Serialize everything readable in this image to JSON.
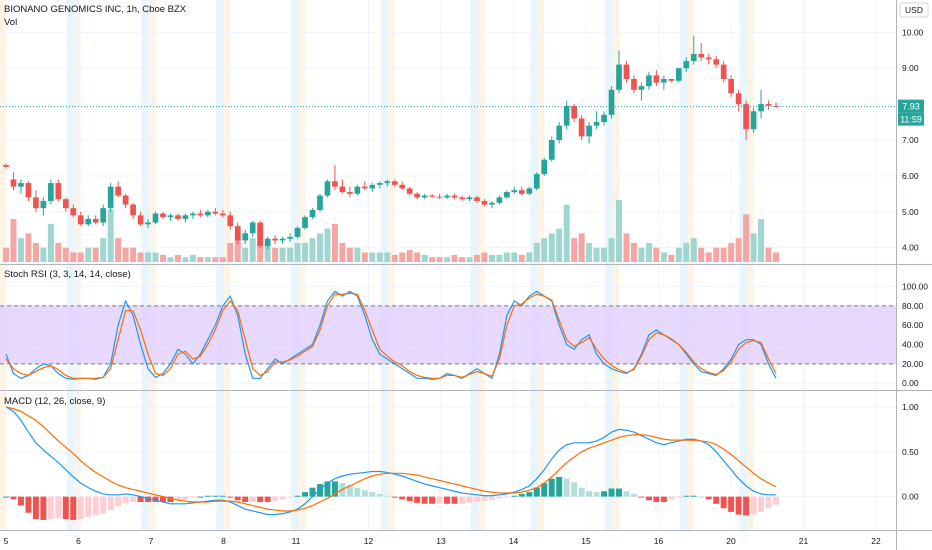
{
  "header": {
    "title": "BIONANO GENOMICS INC, 1h, Cboe BZX",
    "vol_label": "Vol",
    "currency": "USD"
  },
  "price_axis": {
    "ticks": [
      "10.00",
      "9.00",
      "8.00",
      "7.00",
      "6.00",
      "5.00",
      "4.00"
    ]
  },
  "price_tags": {
    "last": "7.93",
    "countdown": "11:59"
  },
  "stoch": {
    "title": "Stoch RSI (3, 3, 14, 14, close)",
    "ticks": [
      "100.00",
      "80.00",
      "60.00",
      "40.00",
      "20.00",
      "0.00"
    ]
  },
  "macd": {
    "title": "MACD (12, 26, close, 9)",
    "ticks": [
      "1.00",
      "0.50",
      "0.00"
    ]
  },
  "time_axis": {
    "ticks": [
      "5",
      "6",
      "7",
      "8",
      "11",
      "12",
      "13",
      "14",
      "15",
      "16",
      "20",
      "21",
      "22"
    ]
  },
  "colors": {
    "up": "#26a69a",
    "down": "#ef5350",
    "vol_up": "#9fd6cf",
    "vol_down": "#f5a5a3",
    "stoch_k": "#2196f3",
    "stoch_d": "#ff6d00",
    "macd_line": "#2196f3",
    "signal_line": "#ff6d00",
    "band": "#e1d0ff",
    "session_blue": "#e3f2fd",
    "session_orange": "#fff3e0",
    "last_price": "#26a69a"
  },
  "chart_data": [
    {
      "type": "candlestick",
      "title": "BIONANO GENOMICS INC, 1h, Cboe BZX",
      "ylim": [
        3.6,
        10.4
      ],
      "x_ticks": [
        "5",
        "6",
        "7",
        "8",
        "11",
        "12",
        "13",
        "14",
        "15",
        "16",
        "20",
        "21",
        "22"
      ],
      "y_ticks": [
        4,
        5,
        6,
        7,
        8,
        9,
        10
      ],
      "last_price": 7.93,
      "ohlc_hourly": [
        [
          6.3,
          6.35,
          6.2,
          6.25
        ],
        [
          5.9,
          6.1,
          5.6,
          5.7
        ],
        [
          5.7,
          5.9,
          5.5,
          5.8
        ],
        [
          5.8,
          5.85,
          5.3,
          5.4
        ],
        [
          5.4,
          5.6,
          5.0,
          5.1
        ],
        [
          5.1,
          5.4,
          4.9,
          5.3
        ],
        [
          5.3,
          5.9,
          5.2,
          5.8
        ],
        [
          5.8,
          5.9,
          5.3,
          5.35
        ],
        [
          5.35,
          5.4,
          5.0,
          5.1
        ],
        [
          5.1,
          5.2,
          4.85,
          4.9
        ],
        [
          4.9,
          5.0,
          4.6,
          4.65
        ],
        [
          4.65,
          4.9,
          4.6,
          4.8
        ],
        [
          4.8,
          4.9,
          4.65,
          4.7
        ],
        [
          4.7,
          5.2,
          4.6,
          5.1
        ],
        [
          5.1,
          5.8,
          5.0,
          5.7
        ],
        [
          5.7,
          5.85,
          5.4,
          5.45
        ],
        [
          5.45,
          5.5,
          5.1,
          5.2
        ],
        [
          5.2,
          5.25,
          4.8,
          4.9
        ],
        [
          4.9,
          5.0,
          4.6,
          4.65
        ],
        [
          4.65,
          4.8,
          4.55,
          4.7
        ],
        [
          4.7,
          5.0,
          4.65,
          4.95
        ],
        [
          4.95,
          5.0,
          4.8,
          4.85
        ],
        [
          4.85,
          4.95,
          4.75,
          4.9
        ],
        [
          4.9,
          4.95,
          4.75,
          4.8
        ],
        [
          4.8,
          4.95,
          4.7,
          4.9
        ],
        [
          4.9,
          5.0,
          4.8,
          4.95
        ],
        [
          4.95,
          5.05,
          4.85,
          4.9
        ],
        [
          4.9,
          5.05,
          4.85,
          5.0
        ],
        [
          5.0,
          5.1,
          4.9,
          4.95
        ],
        [
          4.95,
          5.05,
          4.85,
          4.9
        ],
        [
          4.9,
          5.0,
          4.5,
          4.6
        ],
        [
          4.6,
          4.7,
          4.1,
          4.2
        ],
        [
          4.2,
          4.5,
          4.1,
          4.4
        ],
        [
          4.4,
          4.75,
          4.3,
          4.7
        ],
        [
          4.7,
          4.75,
          4.0,
          4.05
        ],
        [
          4.05,
          4.3,
          3.95,
          4.25
        ],
        [
          4.25,
          4.35,
          4.1,
          4.2
        ],
        [
          4.2,
          4.3,
          4.1,
          4.25
        ],
        [
          4.25,
          4.4,
          4.15,
          4.3
        ],
        [
          4.3,
          4.6,
          4.25,
          4.55
        ],
        [
          4.55,
          4.9,
          4.5,
          4.85
        ],
        [
          4.85,
          5.1,
          4.8,
          5.05
        ],
        [
          5.05,
          5.5,
          5.0,
          5.45
        ],
        [
          5.45,
          5.9,
          5.4,
          5.85
        ],
        [
          5.85,
          6.3,
          5.6,
          5.7
        ],
        [
          5.7,
          5.9,
          5.5,
          5.55
        ],
        [
          5.55,
          5.7,
          5.4,
          5.5
        ],
        [
          5.5,
          5.75,
          5.45,
          5.7
        ],
        [
          5.7,
          5.85,
          5.6,
          5.65
        ],
        [
          5.65,
          5.8,
          5.55,
          5.75
        ],
        [
          5.75,
          5.85,
          5.65,
          5.8
        ],
        [
          5.8,
          5.9,
          5.7,
          5.85
        ],
        [
          5.85,
          5.9,
          5.7,
          5.75
        ],
        [
          5.75,
          5.85,
          5.6,
          5.65
        ],
        [
          5.65,
          5.7,
          5.45,
          5.5
        ],
        [
          5.5,
          5.55,
          5.35,
          5.4
        ],
        [
          5.4,
          5.5,
          5.35,
          5.45
        ],
        [
          5.45,
          5.5,
          5.4,
          5.42
        ],
        [
          5.42,
          5.5,
          5.35,
          5.4
        ],
        [
          5.4,
          5.5,
          5.35,
          5.45
        ],
        [
          5.45,
          5.5,
          5.35,
          5.4
        ],
        [
          5.4,
          5.45,
          5.3,
          5.35
        ],
        [
          5.35,
          5.45,
          5.3,
          5.4
        ],
        [
          5.4,
          5.45,
          5.25,
          5.3
        ],
        [
          5.3,
          5.35,
          5.15,
          5.2
        ],
        [
          5.2,
          5.3,
          5.1,
          5.25
        ],
        [
          5.25,
          5.45,
          5.2,
          5.4
        ],
        [
          5.4,
          5.6,
          5.35,
          5.55
        ],
        [
          5.55,
          5.7,
          5.5,
          5.6
        ],
        [
          5.6,
          5.7,
          5.45,
          5.5
        ],
        [
          5.5,
          5.7,
          5.45,
          5.65
        ],
        [
          5.65,
          6.1,
          5.6,
          6.05
        ],
        [
          6.05,
          6.5,
          6.0,
          6.45
        ],
        [
          6.45,
          7.1,
          6.4,
          7.0
        ],
        [
          7.0,
          7.5,
          6.9,
          7.4
        ],
        [
          7.4,
          8.1,
          7.3,
          7.95
        ],
        [
          7.95,
          8.0,
          7.5,
          7.6
        ],
        [
          7.6,
          7.7,
          7.0,
          7.1
        ],
        [
          7.1,
          7.5,
          6.9,
          7.4
        ],
        [
          7.4,
          7.8,
          7.3,
          7.5
        ],
        [
          7.5,
          7.8,
          7.4,
          7.7
        ],
        [
          7.7,
          8.5,
          7.6,
          8.4
        ],
        [
          8.4,
          9.5,
          8.3,
          9.1
        ],
        [
          9.1,
          9.2,
          8.6,
          8.7
        ],
        [
          8.7,
          8.8,
          8.3,
          8.4
        ],
        [
          8.4,
          8.6,
          8.1,
          8.5
        ],
        [
          8.5,
          8.9,
          8.4,
          8.8
        ],
        [
          8.8,
          8.95,
          8.5,
          8.6
        ],
        [
          8.6,
          8.8,
          8.4,
          8.7
        ],
        [
          8.7,
          8.7,
          8.6,
          8.65
        ],
        [
          8.65,
          9.0,
          8.6,
          9.0
        ],
        [
          9.0,
          9.3,
          8.9,
          9.2
        ],
        [
          9.2,
          9.9,
          9.1,
          9.4
        ],
        [
          9.4,
          9.7,
          9.2,
          9.3
        ],
        [
          9.3,
          9.4,
          9.1,
          9.25
        ],
        [
          9.25,
          9.35,
          9.0,
          9.1
        ],
        [
          9.1,
          9.2,
          8.6,
          8.7
        ],
        [
          8.7,
          8.8,
          8.2,
          8.3
        ],
        [
          8.3,
          8.4,
          7.8,
          8.0
        ],
        [
          8.0,
          8.1,
          7.0,
          7.3
        ],
        [
          7.3,
          7.9,
          7.2,
          7.8
        ],
        [
          7.8,
          8.4,
          7.6,
          8.0
        ],
        [
          8.0,
          8.1,
          7.85,
          7.95
        ],
        [
          7.95,
          8.05,
          7.9,
          7.93
        ]
      ]
    },
    {
      "type": "bar",
      "title": "Vol",
      "values": [
        0.3,
        0.9,
        0.5,
        0.6,
        0.4,
        0.3,
        0.8,
        0.4,
        0.3,
        0.2,
        0.2,
        0.3,
        0.3,
        0.5,
        1.1,
        0.5,
        0.3,
        0.3,
        0.2,
        0.2,
        0.2,
        0.15,
        0.1,
        0.15,
        0.1,
        0.15,
        0.1,
        0.1,
        0.1,
        0.1,
        0.4,
        0.6,
        0.3,
        0.5,
        0.7,
        0.4,
        0.3,
        0.3,
        0.3,
        0.4,
        0.4,
        0.5,
        0.6,
        0.7,
        0.8,
        0.4,
        0.3,
        0.3,
        0.2,
        0.2,
        0.2,
        0.2,
        0.15,
        0.2,
        0.25,
        0.2,
        0.15,
        0.1,
        0.1,
        0.1,
        0.15,
        0.1,
        0.1,
        0.15,
        0.2,
        0.15,
        0.15,
        0.2,
        0.2,
        0.15,
        0.2,
        0.4,
        0.5,
        0.6,
        0.7,
        1.2,
        0.5,
        0.6,
        0.4,
        0.3,
        0.3,
        0.5,
        1.3,
        0.6,
        0.4,
        0.3,
        0.4,
        0.3,
        0.2,
        0.15,
        0.3,
        0.4,
        0.5,
        0.3,
        0.2,
        0.3,
        0.3,
        0.4,
        0.5,
        1.0,
        0.6,
        0.9,
        0.3,
        0.2
      ]
    },
    {
      "type": "line",
      "title": "Stoch RSI (3, 3, 14, 14, close)",
      "ylim": [
        -5,
        115
      ],
      "y_ticks": [
        0,
        20,
        40,
        60,
        80,
        100
      ],
      "band": [
        20,
        80
      ],
      "series": [
        {
          "name": "K",
          "values": [
            30,
            10,
            5,
            8,
            15,
            20,
            18,
            10,
            5,
            4,
            5,
            5,
            4,
            6,
            20,
            60,
            85,
            70,
            40,
            15,
            6,
            10,
            20,
            35,
            30,
            20,
            30,
            45,
            60,
            80,
            90,
            70,
            30,
            5,
            5,
            15,
            25,
            20,
            25,
            30,
            35,
            40,
            60,
            85,
            95,
            90,
            95,
            90,
            70,
            45,
            30,
            25,
            20,
            15,
            10,
            5,
            5,
            4,
            5,
            10,
            8,
            5,
            10,
            15,
            10,
            5,
            30,
            70,
            85,
            80,
            90,
            95,
            90,
            85,
            60,
            40,
            35,
            45,
            50,
            30,
            20,
            15,
            12,
            10,
            15,
            30,
            50,
            55,
            50,
            45,
            40,
            30,
            20,
            12,
            10,
            8,
            15,
            25,
            40,
            45,
            45,
            40,
            20,
            5
          ]
        },
        {
          "name": "D",
          "values": [
            25,
            15,
            10,
            8,
            12,
            16,
            18,
            14,
            8,
            5,
            5,
            5,
            5,
            6,
            15,
            45,
            75,
            75,
            55,
            30,
            10,
            8,
            15,
            30,
            33,
            25,
            28,
            40,
            55,
            75,
            85,
            75,
            45,
            15,
            8,
            12,
            22,
            22,
            24,
            28,
            33,
            38,
            55,
            80,
            92,
            92,
            93,
            92,
            75,
            55,
            35,
            28,
            22,
            18,
            12,
            8,
            6,
            5,
            5,
            8,
            8,
            6,
            9,
            12,
            10,
            7,
            25,
            60,
            80,
            82,
            88,
            92,
            90,
            86,
            65,
            45,
            38,
            42,
            47,
            35,
            25,
            18,
            14,
            11,
            14,
            28,
            45,
            52,
            50,
            46,
            40,
            32,
            22,
            15,
            11,
            9,
            13,
            22,
            35,
            42,
            44,
            42,
            25,
            10
          ]
        }
      ]
    },
    {
      "type": "line",
      "title": "MACD (12, 26, close, 9)",
      "ylim": [
        -0.35,
        1.1
      ],
      "y_ticks": [
        0.0,
        0.5,
        1.0
      ],
      "series": [
        {
          "name": "MACD",
          "values": [
            1.0,
            0.95,
            0.85,
            0.72,
            0.6,
            0.52,
            0.45,
            0.38,
            0.3,
            0.22,
            0.15,
            0.1,
            0.06,
            0.03,
            0.02,
            0.02,
            0.03,
            0.02,
            0.0,
            -0.02,
            -0.04,
            -0.06,
            -0.08,
            -0.08,
            -0.08,
            -0.07,
            -0.06,
            -0.05,
            -0.04,
            -0.04,
            -0.06,
            -0.1,
            -0.14,
            -0.16,
            -0.18,
            -0.2,
            -0.2,
            -0.19,
            -0.17,
            -0.14,
            -0.08,
            0.0,
            0.08,
            0.15,
            0.2,
            0.23,
            0.25,
            0.26,
            0.27,
            0.28,
            0.28,
            0.27,
            0.25,
            0.23,
            0.2,
            0.17,
            0.14,
            0.12,
            0.1,
            0.08,
            0.06,
            0.04,
            0.03,
            0.02,
            0.01,
            0.01,
            0.02,
            0.03,
            0.05,
            0.08,
            0.12,
            0.2,
            0.3,
            0.42,
            0.52,
            0.58,
            0.6,
            0.6,
            0.6,
            0.62,
            0.66,
            0.72,
            0.75,
            0.74,
            0.72,
            0.68,
            0.64,
            0.6,
            0.58,
            0.6,
            0.62,
            0.64,
            0.64,
            0.62,
            0.58,
            0.5,
            0.4,
            0.3,
            0.2,
            0.12,
            0.06,
            0.03,
            0.02,
            0.02
          ]
        },
        {
          "name": "Signal",
          "values": [
            1.0,
            0.98,
            0.95,
            0.9,
            0.85,
            0.78,
            0.7,
            0.62,
            0.55,
            0.48,
            0.4,
            0.33,
            0.27,
            0.22,
            0.17,
            0.13,
            0.1,
            0.08,
            0.06,
            0.04,
            0.02,
            0.0,
            -0.02,
            -0.04,
            -0.05,
            -0.06,
            -0.06,
            -0.06,
            -0.05,
            -0.05,
            -0.05,
            -0.06,
            -0.08,
            -0.1,
            -0.12,
            -0.14,
            -0.15,
            -0.16,
            -0.16,
            -0.15,
            -0.13,
            -0.1,
            -0.06,
            -0.02,
            0.03,
            0.08,
            0.12,
            0.16,
            0.2,
            0.23,
            0.25,
            0.26,
            0.26,
            0.26,
            0.25,
            0.24,
            0.22,
            0.2,
            0.18,
            0.16,
            0.14,
            0.12,
            0.1,
            0.08,
            0.06,
            0.05,
            0.04,
            0.04,
            0.04,
            0.05,
            0.07,
            0.1,
            0.15,
            0.22,
            0.3,
            0.38,
            0.44,
            0.5,
            0.54,
            0.57,
            0.6,
            0.63,
            0.66,
            0.68,
            0.69,
            0.69,
            0.68,
            0.66,
            0.64,
            0.63,
            0.63,
            0.63,
            0.63,
            0.62,
            0.61,
            0.58,
            0.53,
            0.47,
            0.4,
            0.33,
            0.26,
            0.2,
            0.15,
            0.11
          ]
        }
      ]
    }
  ]
}
